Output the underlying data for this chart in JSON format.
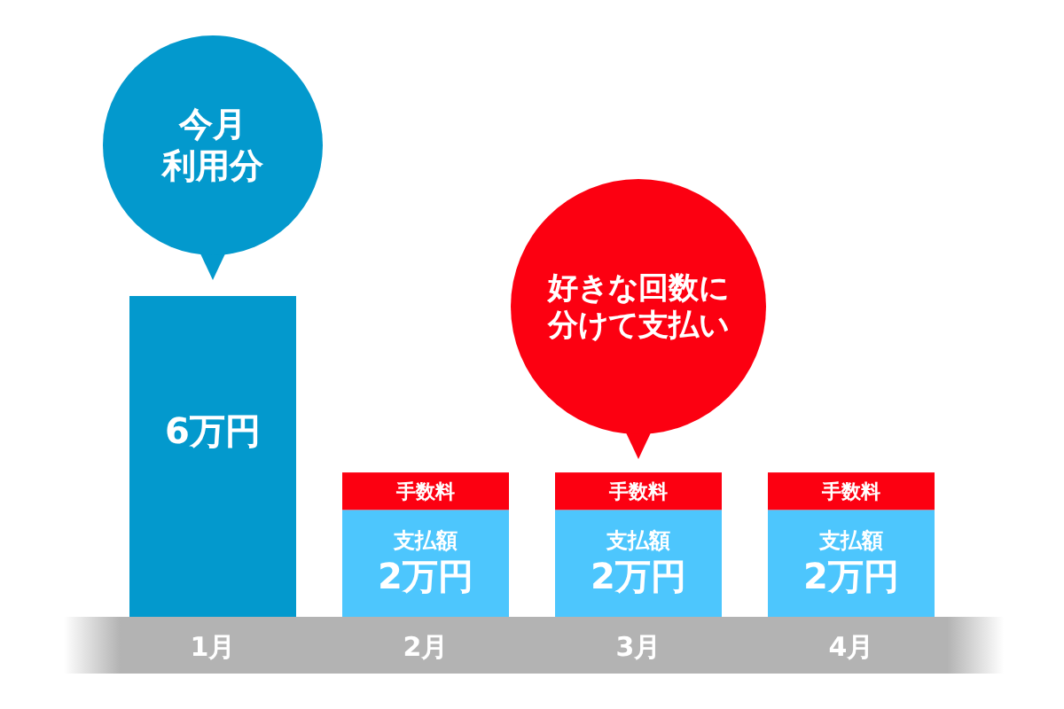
{
  "chart_data": {
    "type": "bar",
    "stacked": true,
    "categories": [
      "1月",
      "2月",
      "3月",
      "4月"
    ],
    "series": [
      {
        "colors": [
          "#0399cd",
          "#4dc6fd",
          "#4dc6fd",
          "#4dc6fd"
        ],
        "values": [
          6,
          2,
          2,
          2
        ],
        "value_labels": [
          "6万円",
          "支払額\n2万円",
          "支払額\n2万円",
          "支払額\n2万円"
        ]
      },
      {
        "name": "手数料",
        "color": "#fc0011",
        "values": [
          null,
          0.7,
          0.7,
          0.7
        ]
      }
    ],
    "ylim": [
      0,
      6
    ],
    "tick_labels": "x",
    "annotations": [
      "今月利用分",
      "好きな回数に分けて支払い"
    ]
  }
}
